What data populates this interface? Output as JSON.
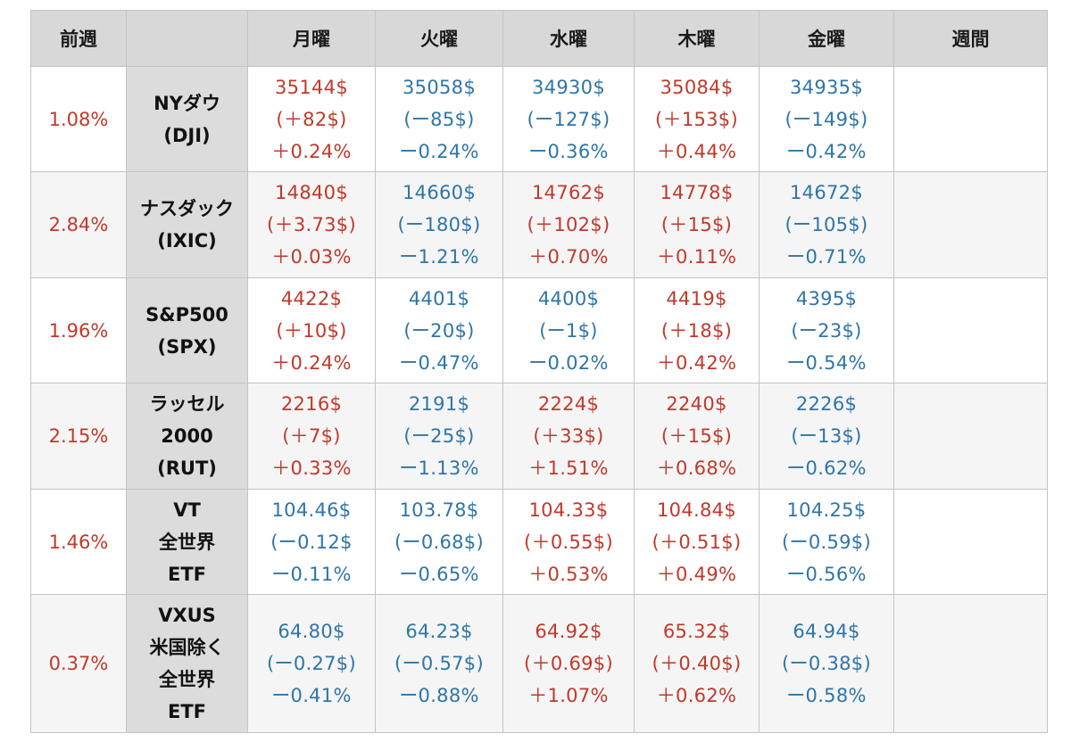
{
  "header": {
    "prev_week": "前週",
    "name_col": "",
    "days": [
      "月曜",
      "火曜",
      "水曜",
      "木曜",
      "金曜"
    ],
    "week": "週間"
  },
  "colors": {
    "up": "#c0392b",
    "down": "#2e75a8",
    "header_bg": "#d8d8d8",
    "name_bg": "#dcdcdc"
  },
  "rows": [
    {
      "prev": "1.08%",
      "name": [
        "NYダウ",
        "(DJI)"
      ],
      "days": [
        {
          "trend": "up",
          "lines": [
            "35144$",
            "(＋82$)",
            "＋0.24%"
          ]
        },
        {
          "trend": "down",
          "lines": [
            "35058$",
            "(ー85$)",
            "ー0.24%"
          ]
        },
        {
          "trend": "down",
          "lines": [
            "34930$",
            "(ー127$)",
            "ー0.36%"
          ]
        },
        {
          "trend": "up",
          "lines": [
            "35084$",
            "(＋153$)",
            "＋0.44%"
          ]
        },
        {
          "trend": "down",
          "lines": [
            "34935$",
            "(ー149$)",
            "ー0.42%"
          ]
        }
      ],
      "week": ""
    },
    {
      "prev": "2.84%",
      "name": [
        "ナスダック",
        "(IXIC)"
      ],
      "days": [
        {
          "trend": "up",
          "lines": [
            "14840$",
            "(＋3.73$)",
            "＋0.03%"
          ]
        },
        {
          "trend": "down",
          "lines": [
            "14660$",
            "(ー180$)",
            "ー1.21%"
          ]
        },
        {
          "trend": "up",
          "lines": [
            "14762$",
            "(＋102$)",
            "＋0.70%"
          ]
        },
        {
          "trend": "up",
          "lines": [
            "14778$",
            "(＋15$)",
            "＋0.11%"
          ]
        },
        {
          "trend": "down",
          "lines": [
            "14672$",
            "(ー105$)",
            "ー0.71%"
          ]
        }
      ],
      "week": ""
    },
    {
      "prev": "1.96%",
      "name": [
        "S&P500",
        "(SPX)"
      ],
      "days": [
        {
          "trend": "up",
          "lines": [
            "4422$",
            "(＋10$)",
            "＋0.24%"
          ]
        },
        {
          "trend": "down",
          "lines": [
            "4401$",
            "(ー20$)",
            "ー0.47%"
          ]
        },
        {
          "trend": "down",
          "lines": [
            "4400$",
            "(ー1$)",
            "ー0.02%"
          ]
        },
        {
          "trend": "up",
          "lines": [
            "4419$",
            "(＋18$)",
            "＋0.42%"
          ]
        },
        {
          "trend": "down",
          "lines": [
            "4395$",
            "(ー23$)",
            "ー0.54%"
          ]
        }
      ],
      "week": ""
    },
    {
      "prev": "2.15%",
      "name": [
        "ラッセル",
        "2000",
        "(RUT)"
      ],
      "days": [
        {
          "trend": "up",
          "lines": [
            "2216$",
            "(＋7$)",
            "＋0.33%"
          ]
        },
        {
          "trend": "down",
          "lines": [
            "2191$",
            "(ー25$)",
            "ー1.13%"
          ]
        },
        {
          "trend": "up",
          "lines": [
            "2224$",
            "(＋33$)",
            "＋1.51%"
          ]
        },
        {
          "trend": "up",
          "lines": [
            "2240$",
            "(＋15$)",
            "＋0.68%"
          ]
        },
        {
          "trend": "down",
          "lines": [
            "2226$",
            "(ー13$)",
            "ー0.62%"
          ]
        }
      ],
      "week": ""
    },
    {
      "prev": "1.46%",
      "name": [
        "VT",
        "全世界",
        "ETF"
      ],
      "days": [
        {
          "trend": "down",
          "lines": [
            "104.46$",
            "(ー0.12$",
            "ー0.11%"
          ]
        },
        {
          "trend": "down",
          "lines": [
            "103.78$",
            "(ー0.68$)",
            "ー0.65%"
          ]
        },
        {
          "trend": "up",
          "lines": [
            "104.33$",
            "(＋0.55$)",
            "＋0.53%"
          ]
        },
        {
          "trend": "up",
          "lines": [
            "104.84$",
            "(＋0.51$)",
            "＋0.49%"
          ]
        },
        {
          "trend": "down",
          "lines": [
            "104.25$",
            "(ー0.59$)",
            "ー0.56%"
          ]
        }
      ],
      "week": ""
    },
    {
      "prev": "0.37%",
      "name": [
        "VXUS",
        "米国除く",
        "全世界",
        "ETF"
      ],
      "days": [
        {
          "trend": "down",
          "lines": [
            "64.80$",
            "(ー0.27$)",
            "ー0.41%"
          ]
        },
        {
          "trend": "down",
          "lines": [
            "64.23$",
            "(ー0.57$)",
            "ー0.88%"
          ]
        },
        {
          "trend": "up",
          "lines": [
            "64.92$",
            "(＋0.69$)",
            "＋1.07%"
          ]
        },
        {
          "trend": "up",
          "lines": [
            "65.32$",
            "(＋0.40$)",
            "＋0.62%"
          ]
        },
        {
          "trend": "down",
          "lines": [
            "64.94$",
            "(ー0.38$)",
            "ー0.58%"
          ]
        }
      ],
      "week": ""
    }
  ]
}
